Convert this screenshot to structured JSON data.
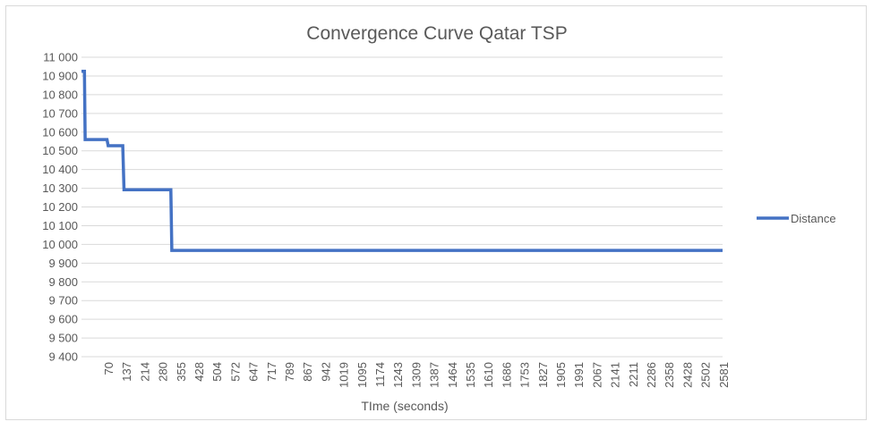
{
  "chart_data": {
    "type": "line",
    "title": "Convergence Curve Qatar TSP",
    "xlabel": "TIme (seconds)",
    "ylabel": "",
    "ylim": [
      9400,
      11000
    ],
    "y_ticks": [
      9400,
      9500,
      9600,
      9700,
      9800,
      9900,
      10000,
      10100,
      10200,
      10300,
      10400,
      10500,
      10600,
      10700,
      10800,
      10900,
      11000
    ],
    "y_tick_labels": [
      "9 400",
      "9 500",
      "9 600",
      "9 700",
      "9 800",
      "9 900",
      "10 000",
      "10 100",
      "10 200",
      "10 300",
      "10 400",
      "10 500",
      "10 600",
      "10 700",
      "10 800",
      "10 900",
      "11 000"
    ],
    "x_tick_labels": [
      "70",
      "137",
      "214",
      "280",
      "355",
      "428",
      "504",
      "572",
      "647",
      "717",
      "789",
      "867",
      "942",
      "1019",
      "1095",
      "1174",
      "1243",
      "1309",
      "1387",
      "1464",
      "1535",
      "1610",
      "1686",
      "1753",
      "1827",
      "1905",
      "1991",
      "2067",
      "2141",
      "2211",
      "2286",
      "2358",
      "2428",
      "2502",
      "2581"
    ],
    "grid": true,
    "legend_position": "right",
    "series": [
      {
        "name": "Distance",
        "color": "#4472C4",
        "points": [
          {
            "x": 0,
            "y": 10925
          },
          {
            "x": 12,
            "y": 10925
          },
          {
            "x": 15,
            "y": 10560
          },
          {
            "x": 105,
            "y": 10560
          },
          {
            "x": 110,
            "y": 10527
          },
          {
            "x": 170,
            "y": 10527
          },
          {
            "x": 175,
            "y": 10292
          },
          {
            "x": 368,
            "y": 10292
          },
          {
            "x": 372,
            "y": 9968
          },
          {
            "x": 2640,
            "y": 9968
          }
        ]
      }
    ]
  }
}
